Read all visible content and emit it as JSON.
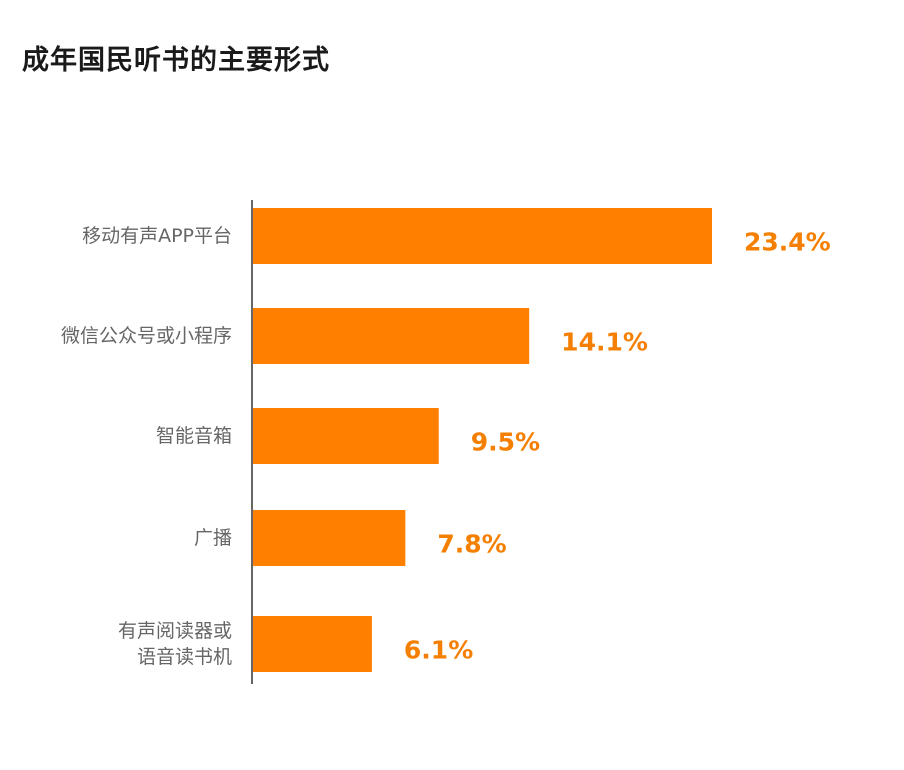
{
  "title": "成年国民听书的主要形式",
  "colors": {
    "bar": "#FF7F00",
    "value_label": "#F57F00",
    "axis": "#666666",
    "category_label": "#666666"
  },
  "chart_data": {
    "type": "bar",
    "orientation": "horizontal",
    "title": "成年国民听书的主要形式",
    "categories": [
      [
        "移动有声APP平台"
      ],
      [
        "微信公众号或小程序"
      ],
      [
        "智能音箱"
      ],
      [
        "广播"
      ],
      [
        "有声阅读器或",
        "语音读书机"
      ]
    ],
    "values": [
      23.4,
      14.1,
      9.5,
      7.8,
      6.1
    ],
    "value_labels": [
      "23.4%",
      "14.1%",
      "9.5%",
      "7.8%",
      "6.1%"
    ],
    "unit": "%",
    "grid": false,
    "legend": "none"
  }
}
